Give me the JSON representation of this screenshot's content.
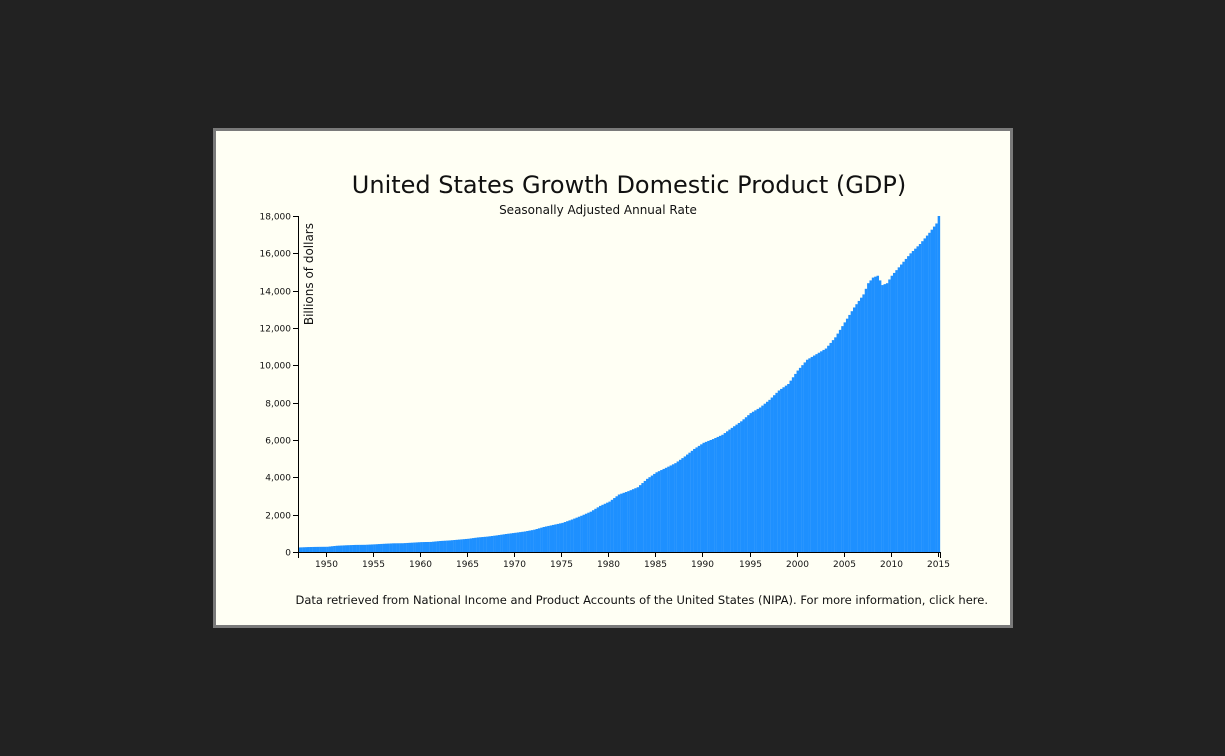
{
  "chart_data": {
    "type": "bar",
    "title": "United States Growth Domestic Product (GDP)",
    "subtitle": "Seasonally Adjusted Annual Rate",
    "xlabel": "",
    "ylabel": "Billions of dollars",
    "xlim": [
      1947,
      2015.25
    ],
    "ylim": [
      0,
      18000
    ],
    "x_ticks": [
      1950,
      1955,
      1960,
      1965,
      1970,
      1975,
      1980,
      1985,
      1990,
      1995,
      2000,
      2005,
      2010,
      2015
    ],
    "y_ticks": [
      0,
      2000,
      4000,
      6000,
      8000,
      10000,
      12000,
      14000,
      16000,
      18000
    ],
    "y_tick_labels": [
      "0",
      "2,000",
      "4,000",
      "6,000",
      "8,000",
      "10,000",
      "12,000",
      "14,000",
      "16,000",
      "18,000"
    ],
    "grid": false,
    "bar_color": "#1e90ff",
    "frequency": "quarterly",
    "anchor_points": [
      [
        1947,
        243
      ],
      [
        1948,
        265
      ],
      [
        1949,
        275
      ],
      [
        1950,
        280
      ],
      [
        1951,
        335
      ],
      [
        1952,
        360
      ],
      [
        1953,
        380
      ],
      [
        1954,
        385
      ],
      [
        1955,
        410
      ],
      [
        1956,
        440
      ],
      [
        1957,
        465
      ],
      [
        1958,
        470
      ],
      [
        1959,
        500
      ],
      [
        1960,
        530
      ],
      [
        1961,
        540
      ],
      [
        1962,
        590
      ],
      [
        1963,
        620
      ],
      [
        1964,
        665
      ],
      [
        1965,
        710
      ],
      [
        1966,
        780
      ],
      [
        1967,
        825
      ],
      [
        1968,
        890
      ],
      [
        1969,
        965
      ],
      [
        1970,
        1030
      ],
      [
        1971,
        1100
      ],
      [
        1972,
        1195
      ],
      [
        1973,
        1340
      ],
      [
        1974,
        1450
      ],
      [
        1975,
        1560
      ],
      [
        1976,
        1740
      ],
      [
        1977,
        1940
      ],
      [
        1978,
        2160
      ],
      [
        1979,
        2470
      ],
      [
        1980,
        2700
      ],
      [
        1981,
        3080
      ],
      [
        1982,
        3260
      ],
      [
        1983,
        3470
      ],
      [
        1984,
        3920
      ],
      [
        1985,
        4270
      ],
      [
        1986,
        4510
      ],
      [
        1987,
        4760
      ],
      [
        1988,
        5120
      ],
      [
        1989,
        5520
      ],
      [
        1990,
        5850
      ],
      [
        1991,
        6050
      ],
      [
        1992,
        6280
      ],
      [
        1993,
        6650
      ],
      [
        1994,
        7000
      ],
      [
        1995,
        7440
      ],
      [
        1996,
        7740
      ],
      [
        1997,
        8150
      ],
      [
        1998,
        8650
      ],
      [
        1999,
        9000
      ],
      [
        2000,
        9720
      ],
      [
        2001,
        10300
      ],
      [
        2002,
        10600
      ],
      [
        2003,
        10900
      ],
      [
        2004,
        11500
      ],
      [
        2005,
        12300
      ],
      [
        2006,
        13100
      ],
      [
        2007,
        13800
      ],
      [
        2007.5,
        14400
      ],
      [
        2008,
        14700
      ],
      [
        2008.5,
        14800
      ],
      [
        2009,
        14300
      ],
      [
        2009.5,
        14400
      ],
      [
        2010,
        14800
      ],
      [
        2011,
        15400
      ],
      [
        2012,
        16000
      ],
      [
        2013,
        16500
      ],
      [
        2014,
        17100
      ],
      [
        2014.75,
        17600
      ],
      [
        2015,
        18000
      ]
    ]
  },
  "footnote": {
    "text": "Data retrieved from National Income and Product Accounts of the United States (NIPA). For more information, click here."
  }
}
